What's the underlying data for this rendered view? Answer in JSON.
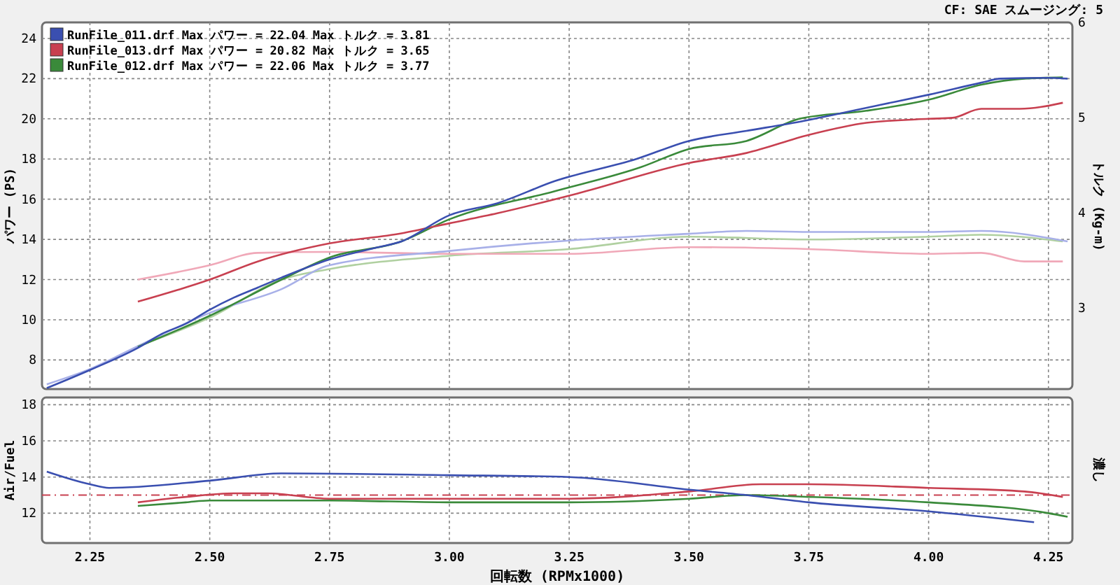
{
  "chart_data": [
    {
      "type": "line",
      "ylabel": "パワー (PS)",
      "y2label": "トルク (Kg-m)",
      "annotations": [
        "CF: SAE  スムージング: 5"
      ],
      "xlim": [
        2.15,
        4.3
      ],
      "xticks": [
        2.25,
        2.5,
        2.75,
        3,
        3.25,
        3.5,
        3.75,
        4,
        4.25
      ],
      "ylim": [
        6.55,
        24.8
      ],
      "yticks": [
        8,
        10,
        12,
        14,
        16,
        18,
        20,
        22,
        24
      ],
      "y2lim": [
        2.15,
        6.0
      ],
      "y2ticks": [
        3,
        4,
        5,
        6
      ],
      "grid": true,
      "legend": "top left",
      "tick_labels": "y",
      "line_style": "solid",
      "series": [
        {
          "name": "RunFile_011.drf Max パワー = 22.04   Max トルク = 3.81",
          "color": "#3a4fb0",
          "x": [
            2.16,
            2.25,
            2.35,
            2.4,
            2.45,
            2.5,
            2.55,
            2.6,
            2.65,
            2.75,
            2.85,
            2.9,
            3.0,
            3.1,
            3.22,
            3.39,
            3.5,
            3.62,
            3.74,
            3.9,
            4.0,
            4.11,
            4.15,
            4.25,
            4.29
          ],
          "values": [
            6.6,
            7.5,
            8.6,
            9.3,
            9.8,
            10.5,
            11.1,
            11.6,
            12.1,
            13.0,
            13.6,
            13.9,
            15.2,
            15.8,
            16.9,
            18.0,
            18.9,
            19.4,
            19.9,
            20.7,
            21.2,
            21.8,
            22.0,
            22.04,
            22.0
          ]
        },
        {
          "name": "RunFile_013.drf Max パワー = 20.82   Max トルク = 3.65",
          "color": "#c84050",
          "x": [
            2.35,
            2.5,
            2.6,
            2.75,
            2.9,
            3.0,
            3.1,
            3.27,
            3.5,
            3.62,
            3.75,
            3.87,
            4.0,
            4.05,
            4.11,
            4.19,
            4.28
          ],
          "values": [
            10.9,
            12.0,
            12.9,
            13.8,
            14.3,
            14.8,
            15.3,
            16.3,
            17.8,
            18.3,
            19.2,
            19.8,
            20.0,
            20.05,
            20.5,
            20.5,
            20.8
          ]
        },
        {
          "name": "RunFile_012.drf Max パワー = 22.06   Max トルク = 3.77",
          "color": "#3a8a3a",
          "x": [
            2.35,
            2.5,
            2.65,
            2.75,
            2.9,
            3.0,
            3.22,
            3.4,
            3.5,
            3.62,
            3.73,
            3.87,
            4.0,
            4.11,
            4.2,
            4.28
          ],
          "values": [
            8.65,
            10.2,
            12.0,
            13.1,
            13.9,
            15.0,
            16.4,
            17.6,
            18.5,
            18.9,
            20.0,
            20.4,
            20.95,
            21.7,
            22.0,
            22.06
          ]
        },
        {
          "axis": "y2",
          "color": "#a8b0e8",
          "x": [
            2.16,
            2.25,
            2.35,
            2.5,
            2.65,
            2.75,
            3.0,
            3.25,
            3.5,
            3.62,
            3.75,
            4.0,
            4.11,
            4.29
          ],
          "values": [
            2.2,
            2.36,
            2.6,
            2.95,
            3.2,
            3.45,
            3.6,
            3.71,
            3.78,
            3.81,
            3.8,
            3.8,
            3.81,
            3.7
          ]
        },
        {
          "axis": "y2",
          "color": "#f0a8b8",
          "x": [
            2.35,
            2.5,
            2.6,
            2.75,
            3.0,
            3.25,
            3.5,
            3.75,
            4.0,
            4.11,
            4.2,
            4.28
          ],
          "values": [
            3.3,
            3.45,
            3.58,
            3.59,
            3.57,
            3.57,
            3.64,
            3.62,
            3.57,
            3.58,
            3.49,
            3.49
          ]
        },
        {
          "axis": "y2",
          "color": "#b0d0a0",
          "x": [
            2.35,
            2.5,
            2.65,
            2.75,
            3.0,
            3.25,
            3.5,
            3.75,
            4.0,
            4.11,
            4.28
          ],
          "values": [
            2.6,
            2.9,
            3.3,
            3.41,
            3.55,
            3.62,
            3.75,
            3.72,
            3.75,
            3.77,
            3.7
          ]
        }
      ]
    },
    {
      "type": "line",
      "xlabel": "回転数 (RPMx1000)",
      "ylabel": "Air/Fuel",
      "y2label": "濃し",
      "xlim": [
        2.15,
        4.3
      ],
      "xticks": [
        {
          "value": 2.25,
          "label": "2.25"
        },
        {
          "value": 2.5,
          "label": "2.50"
        },
        {
          "value": 2.75,
          "label": "2.75"
        },
        {
          "value": 3,
          "label": "3.00"
        },
        {
          "value": 3.25,
          "label": "3.25"
        },
        {
          "value": 3.5,
          "label": "3.50"
        },
        {
          "value": 3.75,
          "label": "3.75"
        },
        {
          "value": 4,
          "label": "4.00"
        },
        {
          "value": 4.25,
          "label": "4.25"
        }
      ],
      "ylim": [
        10.35,
        18.4
      ],
      "yticks": [
        12,
        14,
        16,
        18
      ],
      "grid": true,
      "line_style": "solid",
      "ref_lines": [
        {
          "axis": "y",
          "value": 13,
          "color": "#c84050",
          "line_style": "dashed"
        }
      ],
      "series": [
        {
          "color": "#3a4fb0",
          "x": [
            2.16,
            2.25,
            2.29,
            2.5,
            2.65,
            3.0,
            3.25,
            3.5,
            3.62,
            3.75,
            4.0,
            4.22
          ],
          "values": [
            14.3,
            13.6,
            13.4,
            13.8,
            14.2,
            14.1,
            14.0,
            13.3,
            13.0,
            12.6,
            12.1,
            11.5
          ]
        },
        {
          "color": "#c84050",
          "x": [
            2.35,
            2.45,
            2.55,
            2.62,
            2.75,
            3.0,
            3.25,
            3.5,
            3.65,
            3.75,
            4.0,
            4.2,
            4.28
          ],
          "values": [
            12.6,
            12.9,
            13.1,
            13.1,
            12.8,
            12.8,
            12.8,
            13.2,
            13.6,
            13.6,
            13.4,
            13.2,
            12.9
          ]
        },
        {
          "color": "#3a8a3a",
          "x": [
            2.35,
            2.45,
            2.5,
            2.75,
            3.0,
            3.25,
            3.5,
            3.62,
            3.75,
            4.0,
            4.25,
            4.29
          ],
          "values": [
            12.4,
            12.6,
            12.7,
            12.7,
            12.6,
            12.6,
            12.8,
            13.0,
            12.9,
            12.6,
            12.0,
            11.8
          ]
        }
      ]
    }
  ]
}
